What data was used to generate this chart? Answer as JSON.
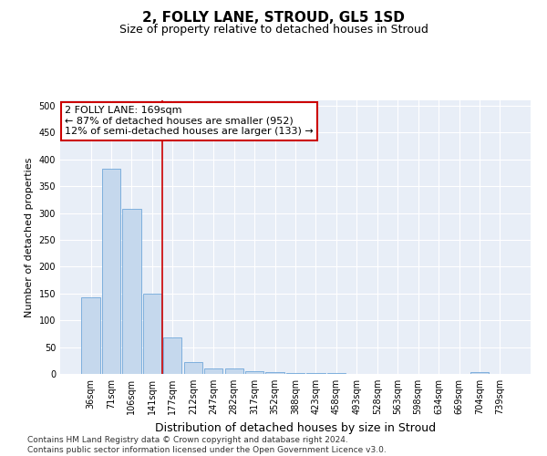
{
  "title": "2, FOLLY LANE, STROUD, GL5 1SD",
  "subtitle": "Size of property relative to detached houses in Stroud",
  "xlabel": "Distribution of detached houses by size in Stroud",
  "ylabel": "Number of detached properties",
  "categories": [
    "36sqm",
    "71sqm",
    "106sqm",
    "141sqm",
    "177sqm",
    "212sqm",
    "247sqm",
    "282sqm",
    "317sqm",
    "352sqm",
    "388sqm",
    "423sqm",
    "458sqm",
    "493sqm",
    "528sqm",
    "563sqm",
    "598sqm",
    "634sqm",
    "669sqm",
    "704sqm",
    "739sqm"
  ],
  "values": [
    143,
    383,
    307,
    149,
    68,
    22,
    10,
    10,
    5,
    4,
    2,
    1,
    1,
    0,
    0,
    0,
    0,
    0,
    0,
    4,
    0
  ],
  "bar_color": "#c5d8ed",
  "bar_edge_color": "#5b9bd5",
  "vline_color": "#cc0000",
  "annotation_line1": "2 FOLLY LANE: 169sqm",
  "annotation_line2": "← 87% of detached houses are smaller (952)",
  "annotation_line3": "12% of semi-detached houses are larger (133) →",
  "annotation_box_color": "#ffffff",
  "annotation_box_edge": "#cc0000",
  "ylim": [
    0,
    510
  ],
  "yticks": [
    0,
    50,
    100,
    150,
    200,
    250,
    300,
    350,
    400,
    450,
    500
  ],
  "background_color": "#e8eef7",
  "footnote": "Contains HM Land Registry data © Crown copyright and database right 2024.\nContains public sector information licensed under the Open Government Licence v3.0.",
  "title_fontsize": 11,
  "subtitle_fontsize": 9,
  "xlabel_fontsize": 9,
  "ylabel_fontsize": 8,
  "tick_fontsize": 7,
  "annotation_fontsize": 8,
  "footnote_fontsize": 6.5
}
